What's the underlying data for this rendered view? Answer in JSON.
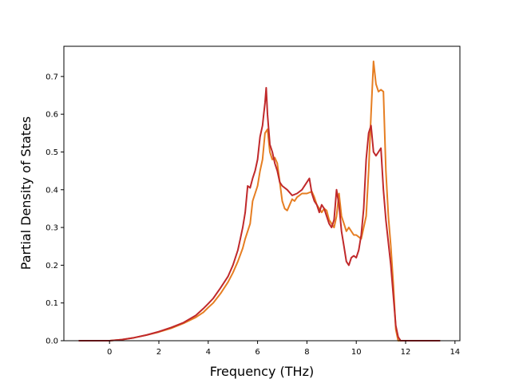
{
  "chart_data": {
    "type": "line",
    "title": "",
    "xlabel": "Frequency (THz)",
    "ylabel": "Partial Density of States",
    "xlim": [
      -1.85,
      14.2
    ],
    "ylim": [
      0.0,
      0.78
    ],
    "xticks": [
      0,
      2,
      4,
      6,
      8,
      10,
      12,
      14
    ],
    "yticks": [
      0.0,
      0.1,
      0.2,
      0.3,
      0.4,
      0.5,
      0.6,
      0.7
    ],
    "xtick_labels": [
      "0",
      "2",
      "4",
      "6",
      "8",
      "10",
      "12",
      "14"
    ],
    "ytick_labels": [
      "0.0",
      "0.1",
      "0.2",
      "0.3",
      "0.4",
      "0.5",
      "0.6",
      "0.7"
    ],
    "grid": false,
    "colors": {
      "series_a": "#e67e22",
      "series_b": "#c0292b"
    },
    "series": [
      {
        "color": "#e67e22",
        "x": [
          -1.25,
          0.0,
          0.5,
          1.0,
          1.5,
          2.0,
          2.5,
          3.0,
          3.5,
          3.8,
          4.0,
          4.2,
          4.5,
          4.8,
          5.0,
          5.2,
          5.4,
          5.5,
          5.6,
          5.7,
          5.8,
          5.9,
          6.0,
          6.1,
          6.2,
          6.3,
          6.4,
          6.5,
          6.6,
          6.7,
          6.8,
          6.9,
          7.0,
          7.1,
          7.2,
          7.3,
          7.4,
          7.5,
          7.6,
          7.8,
          8.0,
          8.2,
          8.3,
          8.4,
          8.5,
          8.6,
          8.7,
          8.8,
          8.9,
          9.0,
          9.1,
          9.2,
          9.3,
          9.4,
          9.5,
          9.6,
          9.7,
          9.8,
          9.9,
          10.0,
          10.1,
          10.2,
          10.3,
          10.4,
          10.5,
          10.6,
          10.7,
          10.8,
          10.9,
          11.0,
          11.1,
          11.2,
          11.3,
          11.4,
          11.5,
          11.6,
          11.7,
          11.8,
          11.9,
          12.0,
          12.05,
          12.1,
          12.2,
          12.5,
          13.0,
          13.4
        ],
        "y": [
          0.0,
          0.0,
          0.003,
          0.008,
          0.015,
          0.023,
          0.033,
          0.046,
          0.062,
          0.075,
          0.088,
          0.1,
          0.125,
          0.155,
          0.18,
          0.21,
          0.245,
          0.27,
          0.29,
          0.31,
          0.37,
          0.39,
          0.41,
          0.45,
          0.48,
          0.55,
          0.56,
          0.5,
          0.48,
          0.485,
          0.47,
          0.42,
          0.37,
          0.35,
          0.345,
          0.36,
          0.375,
          0.37,
          0.38,
          0.39,
          0.39,
          0.395,
          0.38,
          0.36,
          0.35,
          0.34,
          0.35,
          0.345,
          0.32,
          0.31,
          0.3,
          0.33,
          0.39,
          0.33,
          0.31,
          0.29,
          0.3,
          0.29,
          0.28,
          0.28,
          0.275,
          0.27,
          0.3,
          0.33,
          0.45,
          0.6,
          0.74,
          0.68,
          0.66,
          0.665,
          0.66,
          0.45,
          0.33,
          0.25,
          0.15,
          0.03,
          0.0,
          0.0,
          0.0,
          0.0,
          0.0,
          0.0,
          0.0,
          0.0,
          0.0,
          0.0
        ]
      },
      {
        "color": "#c0292b",
        "x": [
          -1.25,
          0.0,
          0.5,
          1.0,
          1.5,
          2.0,
          2.5,
          3.0,
          3.5,
          3.8,
          4.0,
          4.2,
          4.5,
          4.8,
          5.0,
          5.2,
          5.3,
          5.4,
          5.5,
          5.6,
          5.7,
          5.8,
          5.9,
          6.0,
          6.1,
          6.2,
          6.25,
          6.3,
          6.35,
          6.4,
          6.5,
          6.6,
          6.7,
          6.8,
          6.9,
          7.0,
          7.2,
          7.4,
          7.6,
          7.8,
          8.0,
          8.1,
          8.2,
          8.3,
          8.4,
          8.5,
          8.6,
          8.7,
          8.8,
          8.9,
          9.0,
          9.1,
          9.2,
          9.3,
          9.4,
          9.5,
          9.6,
          9.7,
          9.8,
          9.9,
          10.0,
          10.1,
          10.2,
          10.3,
          10.4,
          10.5,
          10.6,
          10.7,
          10.8,
          10.9,
          11.0,
          11.1,
          11.2,
          11.3,
          11.4,
          11.5,
          11.6,
          11.7,
          11.8,
          11.9,
          12.0,
          12.05,
          12.1,
          12.2,
          12.5,
          13.0,
          13.4
        ],
        "y": [
          0.0,
          0.0,
          0.003,
          0.008,
          0.015,
          0.024,
          0.035,
          0.048,
          0.067,
          0.085,
          0.098,
          0.112,
          0.14,
          0.17,
          0.2,
          0.24,
          0.27,
          0.3,
          0.34,
          0.41,
          0.405,
          0.43,
          0.45,
          0.48,
          0.54,
          0.57,
          0.6,
          0.63,
          0.67,
          0.6,
          0.52,
          0.5,
          0.47,
          0.45,
          0.42,
          0.41,
          0.4,
          0.385,
          0.39,
          0.4,
          0.42,
          0.43,
          0.39,
          0.37,
          0.36,
          0.34,
          0.36,
          0.35,
          0.33,
          0.31,
          0.3,
          0.32,
          0.4,
          0.36,
          0.29,
          0.25,
          0.21,
          0.2,
          0.22,
          0.225,
          0.22,
          0.24,
          0.28,
          0.35,
          0.48,
          0.55,
          0.57,
          0.5,
          0.49,
          0.5,
          0.51,
          0.4,
          0.32,
          0.26,
          0.2,
          0.12,
          0.04,
          0.01,
          0.0,
          0.0,
          0.0,
          0.0,
          0.0,
          0.0,
          0.0,
          0.0,
          0.0
        ]
      }
    ]
  }
}
